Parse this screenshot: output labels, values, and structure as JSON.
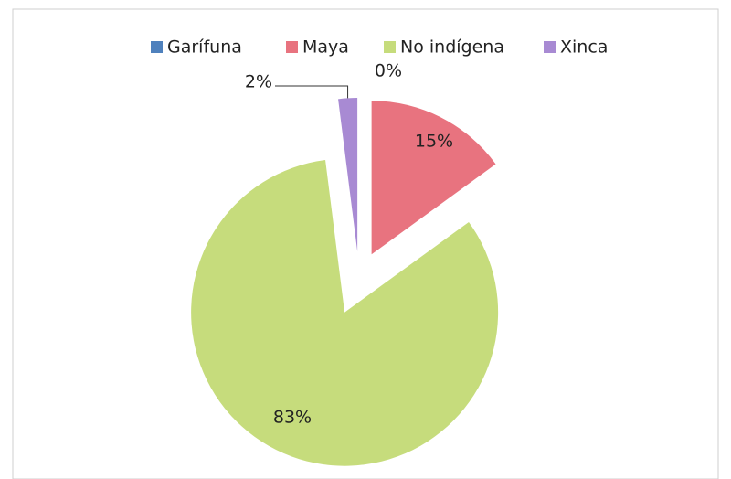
{
  "chart_data": {
    "type": "pie",
    "categories": [
      "Garífuna",
      "Maya",
      "No indígena",
      "Xinca"
    ],
    "values": [
      0,
      15,
      83,
      2
    ],
    "value_labels": [
      "0%",
      "15%",
      "83%",
      "2%"
    ],
    "colors": [
      "#4f81bd",
      "#e8737f",
      "#c6dc7c",
      "#a88ad3"
    ],
    "legend": "top"
  }
}
